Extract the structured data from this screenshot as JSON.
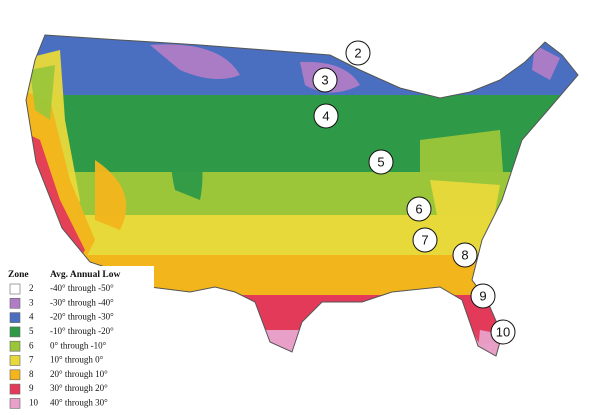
{
  "legend": {
    "zone_header": "Zone",
    "range_header": "Avg. Annual Low",
    "items": [
      {
        "zone": "2",
        "color": "#ffffff",
        "range": "-40° through -50°"
      },
      {
        "zone": "3",
        "color": "#b07cc6",
        "range": "-30° through -40°"
      },
      {
        "zone": "4",
        "color": "#4a6fc0",
        "range": "-20° through -30°"
      },
      {
        "zone": "5",
        "color": "#2e9a48",
        "range": "-10° through -20°"
      },
      {
        "zone": "6",
        "color": "#9bc63a",
        "range": "0° through -10°"
      },
      {
        "zone": "7",
        "color": "#e8d93a",
        "range": "10° through 0°"
      },
      {
        "zone": "8",
        "color": "#f3b51c",
        "range": "20° through 10°"
      },
      {
        "zone": "9",
        "color": "#e43a5a",
        "range": "30° through 20°"
      },
      {
        "zone": "10",
        "color": "#e8a0c8",
        "range": "40° through 30°"
      }
    ]
  },
  "markers": [
    "2",
    "3",
    "4",
    "5",
    "6",
    "7",
    "8",
    "9",
    "10"
  ]
}
